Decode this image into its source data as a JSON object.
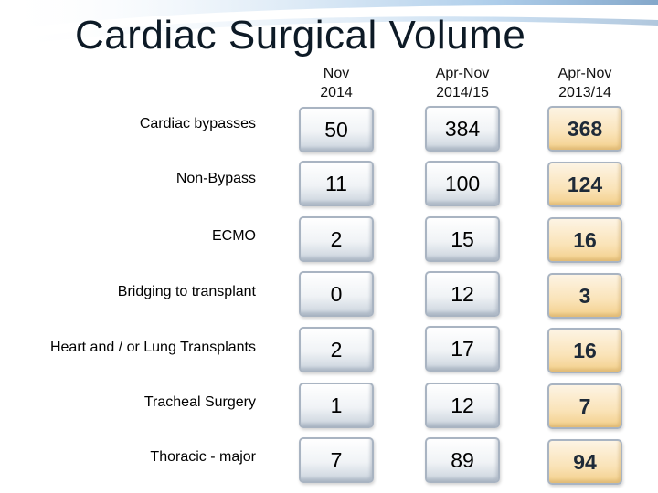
{
  "title": "Cardiac Surgical  Volume",
  "columns": [
    {
      "line1": "Nov",
      "line2": "2014"
    },
    {
      "line1": "Apr-Nov",
      "line2": "2014/15"
    },
    {
      "line1": "Apr-Nov",
      "line2": "2013/14"
    }
  ],
  "rows": [
    {
      "label": "Cardiac bypasses",
      "values": [
        "50",
        "384",
        "368"
      ]
    },
    {
      "label": "Non-Bypass",
      "values": [
        "11",
        "100",
        "124"
      ]
    },
    {
      "label": "ECMO",
      "values": [
        "2",
        "15",
        "16"
      ]
    },
    {
      "label": "Bridging to transplant",
      "values": [
        "0",
        "12",
        "3"
      ]
    },
    {
      "label": "Heart and / or Lung Transplants",
      "values": [
        "2",
        "17",
        "16"
      ]
    },
    {
      "label": "Tracheal Surgery",
      "values": [
        "1",
        "12",
        "7"
      ]
    },
    {
      "label": "Thoracic - major",
      "values": [
        "7",
        "89",
        "94"
      ]
    }
  ],
  "colors": {
    "current_cell": "#f0f3f6",
    "previous_year_cell": "#fae3b8",
    "swoosh": "#3a86c8"
  }
}
